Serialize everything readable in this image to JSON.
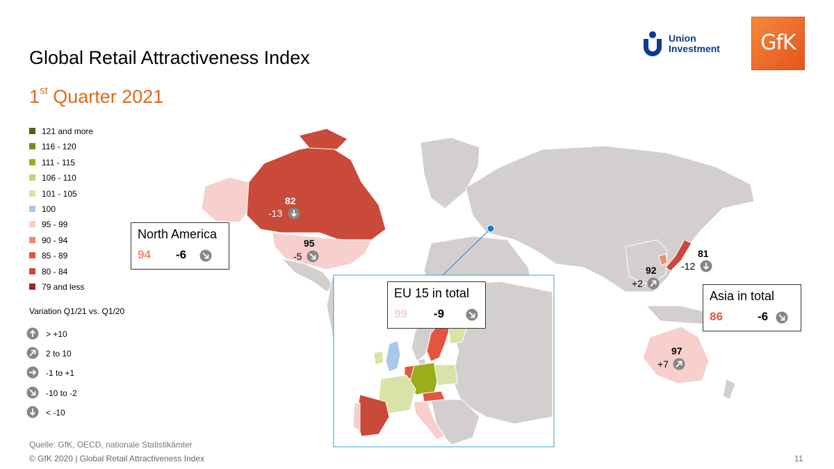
{
  "title": "Global Retail Attractiveness Index",
  "subtitle": {
    "pre": "1",
    "sup": "st",
    "post": " Quarter 2021"
  },
  "logos": {
    "union_investment": {
      "line1": "Union",
      "line2": "Investment"
    },
    "gfk": "GfK"
  },
  "legend": [
    {
      "label": "121 and more",
      "color": "#5a5a12"
    },
    {
      "label": "116 - 120",
      "color": "#7d8a16"
    },
    {
      "label": "111 - 115",
      "color": "#9aae1b"
    },
    {
      "label": "106 - 110",
      "color": "#c4d37a"
    },
    {
      "label": "101 - 105",
      "color": "#d9e3a8"
    },
    {
      "label": "100",
      "color": "#a9c8ea"
    },
    {
      "label": "95 - 99",
      "color": "#f7cfcc"
    },
    {
      "label": "90 - 94",
      "color": "#ef8a6e"
    },
    {
      "label": "85 - 89",
      "color": "#e4553f"
    },
    {
      "label": "80 - 84",
      "color": "#c9493a"
    },
    {
      "label": "79 and less",
      "color": "#9b2a26"
    }
  ],
  "variation": {
    "title": "Variation Q1/21 vs. Q1/20",
    "items": [
      {
        "label": "> +10",
        "icon": "arrow-up-icon"
      },
      {
        "label": "2 to 10",
        "icon": "arrow-up-right-icon"
      },
      {
        "label": "-1 to +1",
        "icon": "arrow-right-icon"
      },
      {
        "label": "-10 to -2",
        "icon": "arrow-down-right-icon"
      },
      {
        "label": "< -10",
        "icon": "arrow-down-icon"
      }
    ]
  },
  "regions": {
    "north_america": {
      "name": "North America",
      "value": "94",
      "change": "-6",
      "value_color": "#ef8a6e"
    },
    "eu15": {
      "name": "EU 15 in total",
      "value": "99",
      "change": "-9",
      "value_color": "#f7cfcc"
    },
    "asia": {
      "name": "Asia in total",
      "value": "86",
      "change": "-6",
      "value_color": "#e4553f"
    }
  },
  "countries": {
    "canada": {
      "value": "82",
      "change": "-13"
    },
    "usa": {
      "value": "95",
      "change": "-5"
    },
    "china": {
      "value": "92",
      "change": "+2"
    },
    "japan": {
      "value": "81",
      "change": "-12"
    },
    "australia": {
      "value": "97",
      "change": "+7"
    }
  },
  "map_colors": {
    "land": "#d4cfcf",
    "border": "#ffffff"
  },
  "footer": {
    "source": "Quelle: GfK, OECD, nationale Statistikämter",
    "copyright": "© GfK 2020 | Global Retail Attractiveness Index",
    "page": "11"
  }
}
